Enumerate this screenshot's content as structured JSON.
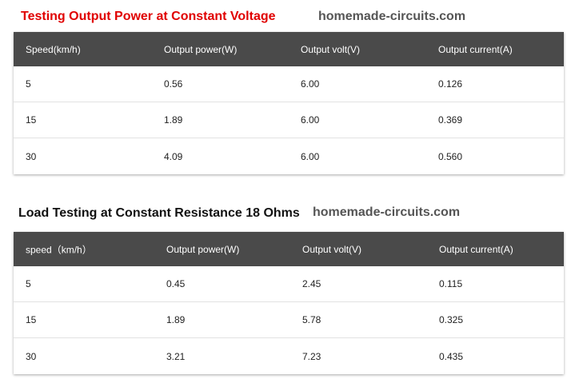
{
  "table1": {
    "title": "Testing Output Power at Constant Voltage",
    "site": "homemade-circuits.com",
    "title_color": "#e00000",
    "headers": [
      "Speed(km/h)",
      "Output power(W)",
      "Output volt(V)",
      "Output current(A)"
    ],
    "rows": [
      [
        "5",
        "0.56",
        "6.00",
        "0.126"
      ],
      [
        "15",
        "1.89",
        "6.00",
        "0.369"
      ],
      [
        "30",
        "4.09",
        "6.00",
        "0.560"
      ]
    ]
  },
  "table2": {
    "title": "Load Testing at Constant Resistance 18 Ohms",
    "site": "homemade-circuits.com",
    "title_color": "#111111",
    "headers": [
      "speed（km/h）",
      "Output power(W)",
      "Output volt(V)",
      "Output current(A)"
    ],
    "rows": [
      [
        "5",
        "0.45",
        "2.45",
        "0.115"
      ],
      [
        "15",
        "1.89",
        "5.78",
        "0.325"
      ],
      [
        "30",
        "3.21",
        "7.23",
        "0.435"
      ]
    ]
  }
}
